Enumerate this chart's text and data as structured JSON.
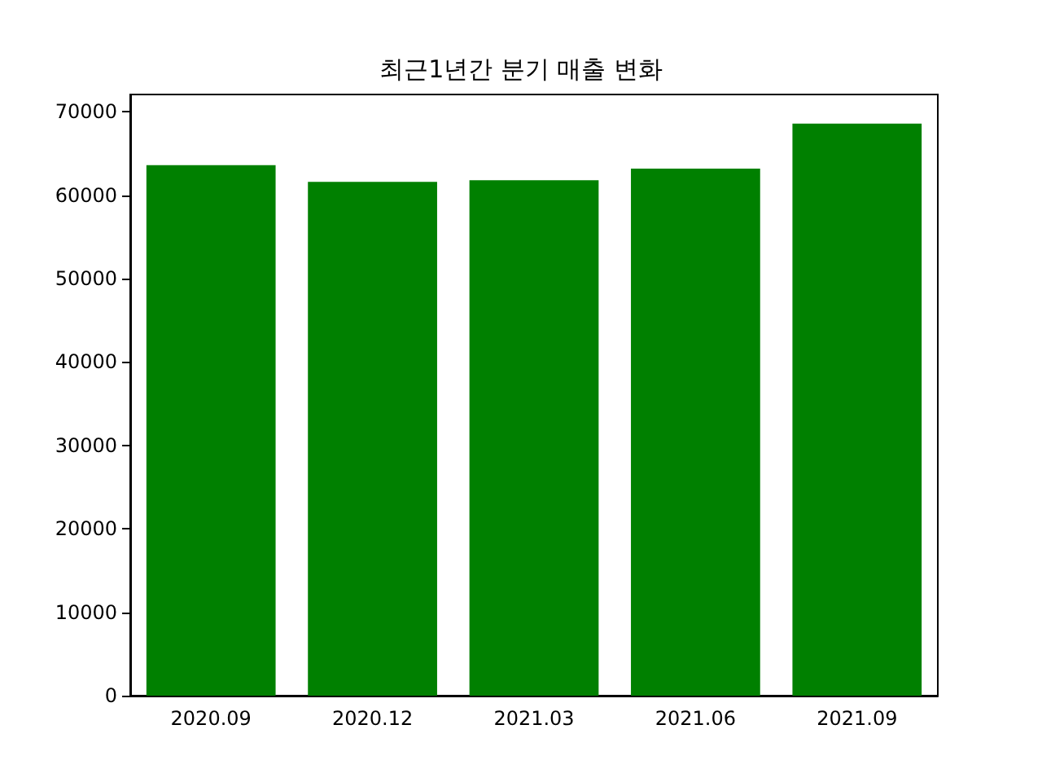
{
  "chart_data": {
    "type": "bar",
    "title": "최근1년간 분기 매출 변화",
    "categories": [
      "2020.09",
      "2020.12",
      "2021.03",
      "2021.06",
      "2021.09"
    ],
    "values": [
      63600,
      61600,
      61800,
      63200,
      68600
    ],
    "color": "#008000",
    "ylim": [
      0,
      72080
    ],
    "yticks": [
      0,
      10000,
      20000,
      30000,
      40000,
      50000,
      60000,
      70000
    ],
    "grid": false
  }
}
